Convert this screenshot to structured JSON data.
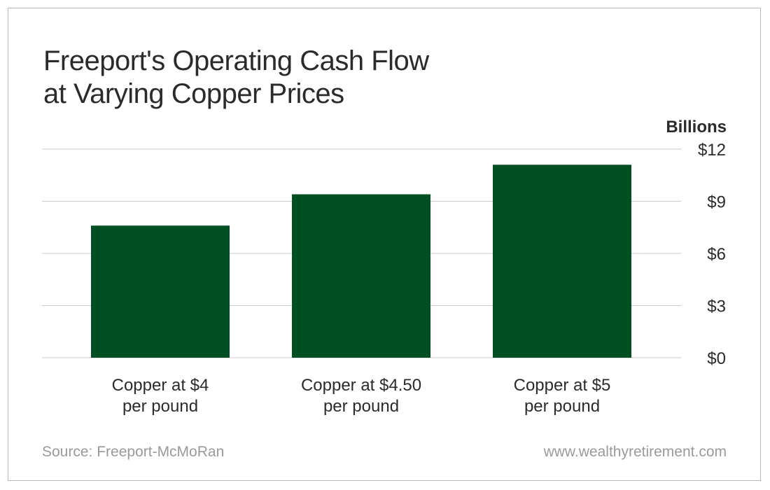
{
  "chart_data": {
    "type": "bar",
    "title_lines": [
      "Freeport's Operating Cash Flow",
      "at Varying Copper Prices"
    ],
    "unit_label": "Billions",
    "categories": [
      [
        "Copper at $4",
        "per pound"
      ],
      [
        "Copper at $4.50",
        "per pound"
      ],
      [
        "Copper at $5",
        "per pound"
      ]
    ],
    "values": [
      7.6,
      9.4,
      11.1
    ],
    "ylim": [
      0,
      12
    ],
    "yticks": [
      0,
      3,
      6,
      9,
      12
    ],
    "ytick_labels": [
      "$0",
      "$3",
      "$6",
      "$9",
      "$12"
    ],
    "grid": true,
    "bar_color": "#004f22",
    "grid_color": "#c8c8c8"
  },
  "footer": {
    "source": "Source: Freeport-McMoRan",
    "website": "www.wealthyretirement.com"
  }
}
